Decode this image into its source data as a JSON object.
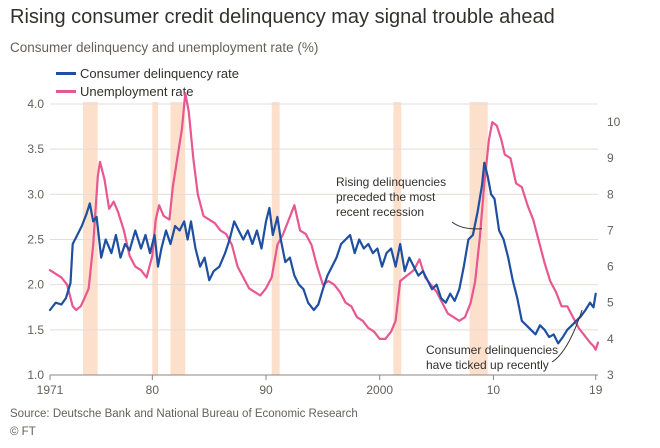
{
  "title": "Rising consumer credit delinquency may signal trouble ahead",
  "subtitle": "Consumer delinquency and unemployment rate (%)",
  "source": "Source: Deutsche Bank and National Bureau of Economic Research",
  "credit": "© FT",
  "colors": {
    "delinquency": "#1e4fa0",
    "unemployment": "#e8578f",
    "recession": "#fde0cc",
    "grid": "#e2ddd9",
    "text": "#66605c"
  },
  "chart_data": {
    "type": "line",
    "x_range": [
      1971,
      2019.2
    ],
    "x_ticks": [
      1971,
      1980,
      1990,
      2000,
      2010,
      2019
    ],
    "x_tick_labels": [
      "1971",
      "80",
      "90",
      "2000",
      "10",
      "19"
    ],
    "y_left": {
      "range": [
        1.0,
        4.0
      ],
      "ticks": [
        1.0,
        1.5,
        2.0,
        2.5,
        3.0,
        3.5,
        4.0
      ],
      "tick_labels": [
        "1.0",
        "1.5",
        "2.0",
        "2.5",
        "3.0",
        "3.5",
        "4.0"
      ]
    },
    "y_right": {
      "range": [
        3,
        10.5
      ],
      "ticks": [
        3,
        4,
        5,
        6,
        7,
        8,
        9,
        10
      ],
      "tick_labels": [
        "3",
        "4",
        "5",
        "6",
        "7",
        "8",
        "9",
        "10"
      ]
    },
    "grid": true,
    "recessions": [
      [
        1973.9,
        1975.2
      ],
      [
        1980.0,
        1980.5
      ],
      [
        1981.6,
        1982.9
      ],
      [
        1990.5,
        1991.2
      ],
      [
        2001.2,
        2001.9
      ],
      [
        2007.9,
        2009.5
      ]
    ],
    "series": [
      {
        "name": "Consumer delinquency rate",
        "axis": "left",
        "points": [
          [
            1971.0,
            1.72
          ],
          [
            1971.5,
            1.8
          ],
          [
            1972.0,
            1.78
          ],
          [
            1972.4,
            1.85
          ],
          [
            1972.8,
            2.02
          ],
          [
            1973.0,
            2.45
          ],
          [
            1973.4,
            2.55
          ],
          [
            1973.8,
            2.65
          ],
          [
            1974.2,
            2.78
          ],
          [
            1974.5,
            2.9
          ],
          [
            1974.8,
            2.7
          ],
          [
            1975.1,
            2.75
          ],
          [
            1975.5,
            2.3
          ],
          [
            1975.9,
            2.5
          ],
          [
            1976.4,
            2.35
          ],
          [
            1976.8,
            2.55
          ],
          [
            1977.2,
            2.3
          ],
          [
            1977.6,
            2.45
          ],
          [
            1978.0,
            2.38
          ],
          [
            1978.5,
            2.6
          ],
          [
            1979.0,
            2.4
          ],
          [
            1979.4,
            2.55
          ],
          [
            1979.8,
            2.35
          ],
          [
            1980.2,
            2.55
          ],
          [
            1980.5,
            2.2
          ],
          [
            1980.8,
            2.4
          ],
          [
            1981.2,
            2.6
          ],
          [
            1981.6,
            2.45
          ],
          [
            1982.0,
            2.65
          ],
          [
            1982.4,
            2.6
          ],
          [
            1982.8,
            2.7
          ],
          [
            1983.1,
            2.5
          ],
          [
            1983.4,
            2.7
          ],
          [
            1983.8,
            2.4
          ],
          [
            1984.2,
            2.2
          ],
          [
            1984.6,
            2.3
          ],
          [
            1985.0,
            2.05
          ],
          [
            1985.4,
            2.15
          ],
          [
            1985.9,
            2.2
          ],
          [
            1986.4,
            2.35
          ],
          [
            1986.8,
            2.5
          ],
          [
            1987.2,
            2.7
          ],
          [
            1987.6,
            2.6
          ],
          [
            1988.0,
            2.5
          ],
          [
            1988.4,
            2.6
          ],
          [
            1988.8,
            2.45
          ],
          [
            1989.2,
            2.6
          ],
          [
            1989.6,
            2.4
          ],
          [
            1990.0,
            2.7
          ],
          [
            1990.3,
            2.85
          ],
          [
            1990.6,
            2.55
          ],
          [
            1991.0,
            2.75
          ],
          [
            1991.3,
            2.5
          ],
          [
            1991.7,
            2.25
          ],
          [
            1992.1,
            2.3
          ],
          [
            1992.5,
            2.1
          ],
          [
            1992.9,
            2.0
          ],
          [
            1993.3,
            1.95
          ],
          [
            1993.7,
            1.8
          ],
          [
            1994.2,
            1.72
          ],
          [
            1994.6,
            1.78
          ],
          [
            1995.0,
            1.95
          ],
          [
            1995.4,
            2.1
          ],
          [
            1995.8,
            2.2
          ],
          [
            1996.2,
            2.3
          ],
          [
            1996.6,
            2.45
          ],
          [
            1997.0,
            2.5
          ],
          [
            1997.4,
            2.55
          ],
          [
            1997.8,
            2.35
          ],
          [
            1998.2,
            2.5
          ],
          [
            1998.6,
            2.4
          ],
          [
            1999.0,
            2.45
          ],
          [
            1999.4,
            2.35
          ],
          [
            1999.8,
            2.4
          ],
          [
            2000.2,
            2.2
          ],
          [
            2000.6,
            2.35
          ],
          [
            2001.0,
            2.4
          ],
          [
            2001.4,
            2.2
          ],
          [
            2001.8,
            2.45
          ],
          [
            2002.2,
            2.15
          ],
          [
            2002.6,
            2.3
          ],
          [
            2003.0,
            2.2
          ],
          [
            2003.4,
            2.1
          ],
          [
            2003.8,
            2.15
          ],
          [
            2004.2,
            2.05
          ],
          [
            2004.6,
            1.95
          ],
          [
            2005.0,
            2.0
          ],
          [
            2005.4,
            1.85
          ],
          [
            2005.8,
            1.8
          ],
          [
            2006.2,
            1.9
          ],
          [
            2006.6,
            1.82
          ],
          [
            2007.0,
            1.95
          ],
          [
            2007.4,
            2.2
          ],
          [
            2007.8,
            2.5
          ],
          [
            2008.2,
            2.55
          ],
          [
            2008.6,
            2.8
          ],
          [
            2009.0,
            3.1
          ],
          [
            2009.2,
            3.35
          ],
          [
            2009.5,
            3.2
          ],
          [
            2009.8,
            3.0
          ],
          [
            2010.1,
            2.95
          ],
          [
            2010.5,
            2.6
          ],
          [
            2010.9,
            2.5
          ],
          [
            2011.3,
            2.3
          ],
          [
            2011.7,
            2.05
          ],
          [
            2012.1,
            1.85
          ],
          [
            2012.5,
            1.6
          ],
          [
            2012.9,
            1.55
          ],
          [
            2013.3,
            1.5
          ],
          [
            2013.7,
            1.45
          ],
          [
            2014.1,
            1.55
          ],
          [
            2014.5,
            1.5
          ],
          [
            2014.9,
            1.42
          ],
          [
            2015.3,
            1.45
          ],
          [
            2015.7,
            1.35
          ],
          [
            2016.1,
            1.42
          ],
          [
            2016.5,
            1.5
          ],
          [
            2016.9,
            1.55
          ],
          [
            2017.3,
            1.6
          ],
          [
            2017.7,
            1.65
          ],
          [
            2018.1,
            1.72
          ],
          [
            2018.5,
            1.8
          ],
          [
            2018.8,
            1.75
          ],
          [
            2019.0,
            1.9
          ]
        ]
      },
      {
        "name": "Unemployment rate",
        "axis": "right",
        "points": [
          [
            1971.0,
            5.9
          ],
          [
            1971.5,
            5.8
          ],
          [
            1972.0,
            5.7
          ],
          [
            1972.5,
            5.5
          ],
          [
            1973.0,
            4.9
          ],
          [
            1973.3,
            4.8
          ],
          [
            1973.7,
            4.9
          ],
          [
            1974.0,
            5.1
          ],
          [
            1974.4,
            5.4
          ],
          [
            1974.8,
            6.6
          ],
          [
            1975.2,
            8.5
          ],
          [
            1975.4,
            8.9
          ],
          [
            1975.8,
            8.4
          ],
          [
            1976.2,
            7.6
          ],
          [
            1976.6,
            7.8
          ],
          [
            1977.0,
            7.5
          ],
          [
            1977.5,
            7.0
          ],
          [
            1978.0,
            6.3
          ],
          [
            1978.5,
            6.0
          ],
          [
            1979.0,
            5.9
          ],
          [
            1979.5,
            5.7
          ],
          [
            1980.0,
            6.3
          ],
          [
            1980.3,
            7.3
          ],
          [
            1980.6,
            7.7
          ],
          [
            1981.0,
            7.4
          ],
          [
            1981.5,
            7.3
          ],
          [
            1981.8,
            8.2
          ],
          [
            1982.2,
            9.0
          ],
          [
            1982.6,
            9.8
          ],
          [
            1982.9,
            10.8
          ],
          [
            1983.2,
            10.3
          ],
          [
            1983.6,
            9.0
          ],
          [
            1984.0,
            8.0
          ],
          [
            1984.5,
            7.4
          ],
          [
            1985.0,
            7.3
          ],
          [
            1985.5,
            7.2
          ],
          [
            1986.0,
            7.0
          ],
          [
            1986.5,
            6.9
          ],
          [
            1987.0,
            6.6
          ],
          [
            1987.5,
            6.0
          ],
          [
            1988.0,
            5.7
          ],
          [
            1988.5,
            5.4
          ],
          [
            1989.0,
            5.3
          ],
          [
            1989.5,
            5.2
          ],
          [
            1990.0,
            5.4
          ],
          [
            1990.5,
            5.7
          ],
          [
            1991.0,
            6.6
          ],
          [
            1991.5,
            6.9
          ],
          [
            1992.0,
            7.3
          ],
          [
            1992.5,
            7.7
          ],
          [
            1993.0,
            7.0
          ],
          [
            1993.5,
            6.9
          ],
          [
            1994.0,
            6.6
          ],
          [
            1994.5,
            6.0
          ],
          [
            1995.0,
            5.5
          ],
          [
            1995.5,
            5.6
          ],
          [
            1996.0,
            5.5
          ],
          [
            1996.5,
            5.3
          ],
          [
            1997.0,
            5.0
          ],
          [
            1997.5,
            4.9
          ],
          [
            1998.0,
            4.6
          ],
          [
            1998.5,
            4.5
          ],
          [
            1999.0,
            4.3
          ],
          [
            1999.5,
            4.2
          ],
          [
            2000.0,
            4.0
          ],
          [
            2000.5,
            4.0
          ],
          [
            2001.0,
            4.2
          ],
          [
            2001.4,
            4.5
          ],
          [
            2001.8,
            5.6
          ],
          [
            2002.2,
            5.7
          ],
          [
            2002.6,
            5.8
          ],
          [
            2003.0,
            5.9
          ],
          [
            2003.5,
            6.2
          ],
          [
            2004.0,
            5.7
          ],
          [
            2004.5,
            5.5
          ],
          [
            2005.0,
            5.3
          ],
          [
            2005.5,
            5.0
          ],
          [
            2006.0,
            4.7
          ],
          [
            2006.5,
            4.6
          ],
          [
            2007.0,
            4.5
          ],
          [
            2007.5,
            4.6
          ],
          [
            2008.0,
            5.0
          ],
          [
            2008.4,
            5.6
          ],
          [
            2008.8,
            6.8
          ],
          [
            2009.2,
            8.3
          ],
          [
            2009.6,
            9.5
          ],
          [
            2009.9,
            10.0
          ],
          [
            2010.3,
            9.9
          ],
          [
            2010.7,
            9.5
          ],
          [
            2011.0,
            9.1
          ],
          [
            2011.5,
            9.0
          ],
          [
            2012.0,
            8.3
          ],
          [
            2012.5,
            8.2
          ],
          [
            2013.0,
            7.7
          ],
          [
            2013.5,
            7.3
          ],
          [
            2014.0,
            6.7
          ],
          [
            2014.5,
            6.1
          ],
          [
            2015.0,
            5.6
          ],
          [
            2015.5,
            5.3
          ],
          [
            2016.0,
            4.9
          ],
          [
            2016.5,
            4.9
          ],
          [
            2017.0,
            4.6
          ],
          [
            2017.5,
            4.3
          ],
          [
            2018.0,
            4.1
          ],
          [
            2018.5,
            3.9
          ],
          [
            2018.8,
            3.8
          ],
          [
            2019.0,
            3.7
          ],
          [
            2019.2,
            3.9
          ]
        ]
      }
    ],
    "annotations": [
      {
        "lines": [
          "Rising delinquencies",
          "preceded the most",
          "recent recession"
        ],
        "target": [
          2009.0,
          2.62
        ]
      },
      {
        "lines": [
          "Consumer delinquencies",
          "have ticked up recently"
        ],
        "target": [
          2017.8,
          1.72
        ]
      }
    ]
  }
}
